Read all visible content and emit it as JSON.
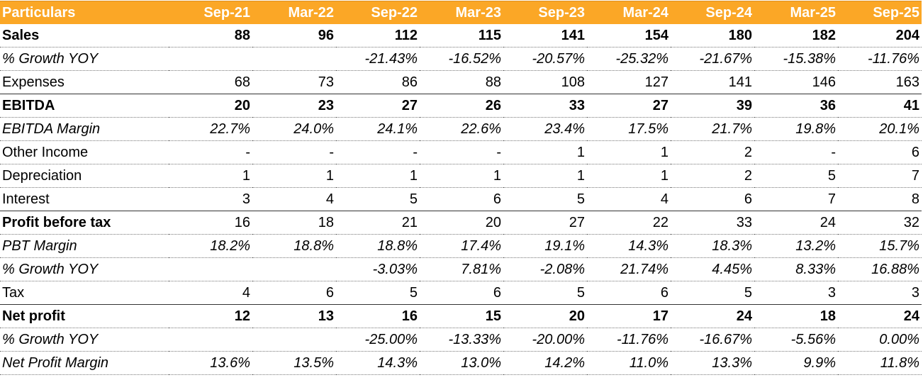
{
  "table": {
    "header": [
      "Particulars",
      "Sep-21",
      "Mar-22",
      "Sep-22",
      "Mar-23",
      "Sep-23",
      "Mar-24",
      "Sep-24",
      "Mar-25",
      "Sep-25"
    ],
    "rows": [
      [
        "Sales",
        "88",
        "96",
        "112",
        "115",
        "141",
        "154",
        "180",
        "182",
        "204"
      ],
      [
        "% Growth YOY",
        null,
        null,
        "-21.43%",
        "-16.52%",
        "-20.57%",
        "-25.32%",
        "-21.67%",
        "-15.38%",
        "-11.76%"
      ],
      [
        "Expenses",
        "68",
        "73",
        "86",
        "88",
        "108",
        "127",
        "141",
        "146",
        "163"
      ],
      [
        "EBITDA",
        "20",
        "23",
        "27",
        "26",
        "33",
        "27",
        "39",
        "36",
        "41"
      ],
      [
        "EBITDA Margin",
        "22.7%",
        "24.0%",
        "24.1%",
        "22.6%",
        "23.4%",
        "17.5%",
        "21.7%",
        "19.8%",
        "20.1%"
      ],
      [
        "Other Income",
        "-",
        "-",
        "-",
        "-",
        "1",
        "1",
        "2",
        "-",
        "6"
      ],
      [
        "Depreciation",
        "1",
        "1",
        "1",
        "1",
        "1",
        "1",
        "2",
        "5",
        "7"
      ],
      [
        "Interest",
        "3",
        "4",
        "5",
        "6",
        "5",
        "4",
        "6",
        "7",
        "8"
      ],
      [
        "Profit before tax",
        "16",
        "18",
        "21",
        "20",
        "27",
        "22",
        "33",
        "24",
        "32"
      ],
      [
        "PBT Margin",
        "18.2%",
        "18.8%",
        "18.8%",
        "17.4%",
        "19.1%",
        "14.3%",
        "18.3%",
        "13.2%",
        "15.7%"
      ],
      [
        "% Growth YOY",
        null,
        null,
        "-3.03%",
        "7.81%",
        "-2.08%",
        "21.74%",
        "4.45%",
        "8.33%",
        "16.88%"
      ],
      [
        "Tax",
        "4",
        "6",
        "5",
        "6",
        "5",
        "6",
        "5",
        "3",
        "3"
      ],
      [
        "Net profit",
        "12",
        "13",
        "16",
        "15",
        "20",
        "17",
        "24",
        "18",
        "24"
      ],
      [
        "% Growth YOY",
        null,
        null,
        "-25.00%",
        "-13.33%",
        "-20.00%",
        "-11.76%",
        "-16.67%",
        "-5.56%",
        "0.00%"
      ],
      [
        "Net Profit Margin",
        "13.6%",
        "13.5%",
        "14.3%",
        "13.0%",
        "14.2%",
        "11.0%",
        "13.3%",
        "9.9%",
        "11.8%"
      ]
    ]
  }
}
